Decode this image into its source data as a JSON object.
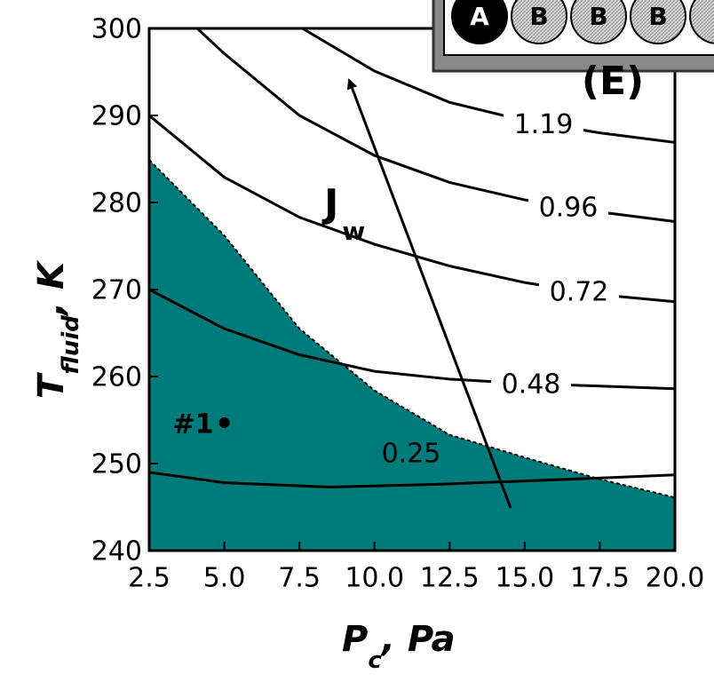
{
  "chart_data": {
    "type": "contour",
    "xlabel": {
      "main": "P",
      "sub": "c",
      "rest": ", Pa"
    },
    "ylabel": {
      "main": "T",
      "sub": "fluid",
      "rest": ", K"
    },
    "xlim": [
      2.5,
      20.0
    ],
    "ylim": [
      240,
      300
    ],
    "xticks": [
      {
        "value": 2.5,
        "label": "2.5"
      },
      {
        "value": 5.0,
        "label": "5.0"
      },
      {
        "value": 7.5,
        "label": "7.5"
      },
      {
        "value": 10.0,
        "label": "10.0"
      },
      {
        "value": 12.5,
        "label": "12.5"
      },
      {
        "value": 15.0,
        "label": "15.0"
      },
      {
        "value": 17.5,
        "label": "17.5"
      },
      {
        "value": 20.0,
        "label": "20.0"
      }
    ],
    "yticks": [
      240,
      250,
      260,
      270,
      280,
      290,
      300
    ],
    "region": {
      "color": "#007b7b",
      "x": [
        2.5,
        5.0,
        7.5,
        10.0,
        12.5,
        15.0,
        17.5,
        20.0
      ],
      "y": [
        284.9,
        276.2,
        265.5,
        258.4,
        253.3,
        250.7,
        248.2,
        246.1
      ]
    },
    "series": [
      {
        "name": "0.25",
        "color": "#000000",
        "x": [
          2.5,
          5.0,
          8.5,
          12.0,
          15.0,
          18.0,
          20.0
        ],
        "y": [
          249.0,
          247.8,
          247.3,
          247.6,
          248.0,
          248.4,
          248.7
        ]
      },
      {
        "name": "0.48",
        "color": "#000000",
        "x": [
          2.5,
          5.0,
          7.5,
          10.0,
          12.5,
          15.0,
          17.5,
          20.0
        ],
        "y": [
          270.0,
          265.5,
          262.5,
          260.6,
          259.7,
          259.2,
          258.9,
          258.6
        ]
      },
      {
        "name": "0.72",
        "color": "#000000",
        "x": [
          2.5,
          5.0,
          7.5,
          10.0,
          12.5,
          15.0,
          17.5,
          20.0
        ],
        "y": [
          290.0,
          282.9,
          278.3,
          275.2,
          272.7,
          270.8,
          269.4,
          268.6
        ]
      },
      {
        "name": "0.96",
        "color": "#000000",
        "x": [
          4.1,
          5.0,
          7.5,
          10.0,
          12.5,
          15.0,
          17.5,
          20.0
        ],
        "y": [
          300.0,
          297.1,
          290.0,
          285.4,
          282.3,
          280.3,
          278.9,
          277.8
        ]
      },
      {
        "name": "1.19",
        "color": "#000000",
        "x": [
          7.6,
          10.0,
          12.5,
          15.0,
          17.5,
          20.0
        ],
        "y": [
          300.0,
          295.1,
          291.5,
          289.4,
          288.0,
          286.9
        ]
      }
    ],
    "points": [
      {
        "label": "#1",
        "x": 5.0,
        "y": 254.7
      }
    ],
    "arrow_label": {
      "main": "J",
      "sub": "w"
    },
    "inset": {
      "label": "(E)",
      "particles": [
        "A",
        "B",
        "B",
        "B"
      ]
    }
  }
}
